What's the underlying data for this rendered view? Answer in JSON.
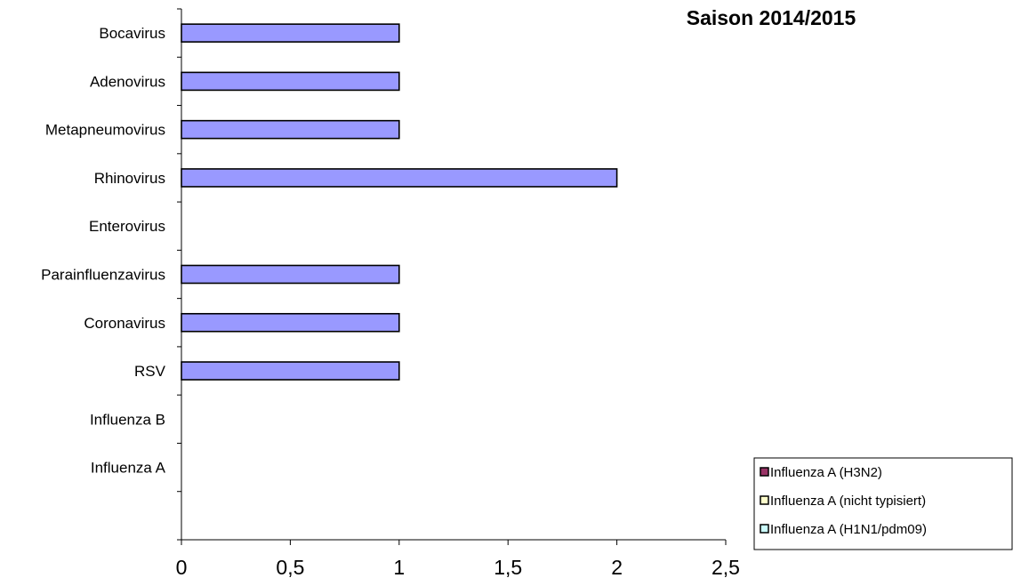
{
  "chart_data": {
    "type": "bar",
    "orientation": "horizontal",
    "title": "Saison 2014/2015",
    "categories": [
      "Bocavirus",
      "Adenovirus",
      "Metapneumovirus",
      "Rhinovirus",
      "Enterovirus",
      "Parainfluenzavirus",
      "Coronavirus",
      "RSV",
      "Influenza B",
      "Influenza A"
    ],
    "series": [
      {
        "values": [
          1,
          1,
          1,
          2,
          0,
          1,
          1,
          1,
          0,
          0
        ],
        "color": "#9999ff"
      }
    ],
    "xlim": [
      0,
      2.5
    ],
    "xticks": [
      0,
      0.5,
      1,
      1.5,
      2,
      2.5
    ],
    "xtick_labels": [
      "0",
      "0,5",
      "1",
      "1,5",
      "2",
      "2,5"
    ],
    "grid": false,
    "legend": {
      "placement": "bottom-right",
      "entries": [
        {
          "name": "Influenza A (H3N2)",
          "color": "#993366"
        },
        {
          "name": "Influenza A (nicht typisiert)",
          "color": "#ffffcc"
        },
        {
          "name": "Influenza A (H1N1/pdm09)",
          "color": "#ccffff"
        }
      ]
    }
  }
}
